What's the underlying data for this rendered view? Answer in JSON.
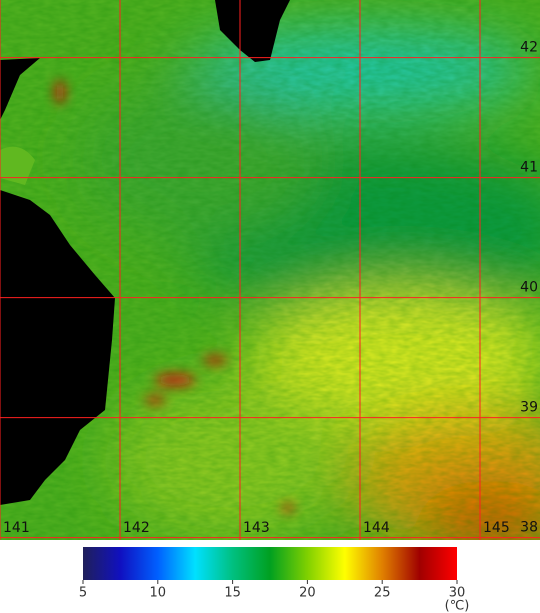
{
  "map": {
    "lon_ticks": [
      141,
      142,
      143,
      144,
      145
    ],
    "lat_ticks": [
      42,
      41,
      40,
      39,
      38
    ],
    "lon_range": [
      141,
      145.5
    ],
    "lat_range": [
      42.48,
      37.98
    ],
    "grid_color": "#ff2020"
  },
  "colorbar": {
    "range": [
      5,
      30
    ],
    "ticks": [
      5,
      10,
      15,
      20,
      25,
      30
    ],
    "unit": "(℃)",
    "colors": [
      "#20205a",
      "#1010c0",
      "#0060ff",
      "#00e0ff",
      "#00c080",
      "#00a020",
      "#80d000",
      "#ffff00",
      "#e08000",
      "#a00000",
      "#ff0000"
    ]
  }
}
